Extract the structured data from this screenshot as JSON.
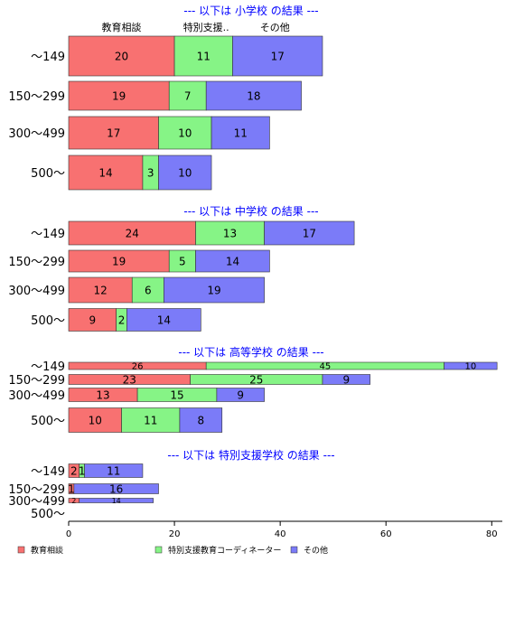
{
  "chart_data": {
    "type": "bar",
    "orientation": "horizontal",
    "stacked": true,
    "xlim": [
      0,
      82
    ],
    "x_ticks": [
      0,
      20,
      40,
      60,
      80
    ],
    "grid": false,
    "legend_position": "bottom",
    "column_headers": [
      "教育相談",
      "特別支援..",
      "その他"
    ],
    "series": [
      {
        "name": "教育相談",
        "color": "#f87171"
      },
      {
        "name": "特別支援教育コーディネーター",
        "color": "#86f486"
      },
      {
        "name": "その他",
        "color": "#7b7bf8"
      }
    ],
    "panels": [
      {
        "title": "--- 以下は 小学校 の結果 ---",
        "categories": [
          "～149",
          "150～299",
          "300～499",
          "500～"
        ],
        "values": [
          [
            20,
            11,
            17
          ],
          [
            19,
            7,
            18
          ],
          [
            17,
            10,
            11
          ],
          [
            14,
            3,
            10
          ]
        ]
      },
      {
        "title": "--- 以下は 中学校 の結果 ---",
        "categories": [
          "～149",
          "150～299",
          "300～499",
          "500～"
        ],
        "values": [
          [
            24,
            13,
            17
          ],
          [
            19,
            5,
            14
          ],
          [
            12,
            6,
            19
          ],
          [
            9,
            2,
            14
          ]
        ]
      },
      {
        "title": "--- 以下は 高等学校 の結果 ---",
        "categories": [
          "～149",
          "150～299",
          "300～499",
          "500～"
        ],
        "values": [
          [
            26,
            45,
            10
          ],
          [
            23,
            25,
            9
          ],
          [
            13,
            15,
            9
          ],
          [
            10,
            11,
            8
          ]
        ]
      },
      {
        "title": "--- 以下は 特別支援学校 の結果 ---",
        "categories": [
          "～149",
          "150～299",
          "300～499",
          "500～"
        ],
        "values": [
          [
            2,
            1,
            11
          ],
          [
            1,
            0,
            16
          ],
          [
            2,
            0,
            14
          ],
          [
            0,
            0,
            0
          ]
        ]
      }
    ]
  }
}
